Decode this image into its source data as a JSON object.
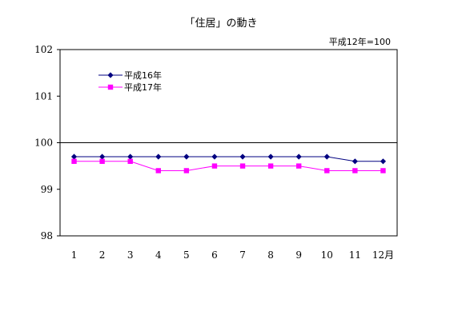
{
  "chart_data": {
    "type": "line",
    "title": "「住居」の動き",
    "note": "平成12年=100",
    "categories": [
      "1",
      "2",
      "3",
      "4",
      "5",
      "6",
      "7",
      "8",
      "9",
      "10",
      "11",
      "12月"
    ],
    "series": [
      {
        "name": "平成16年",
        "color": "#000080",
        "marker": "diamond",
        "values": [
          99.7,
          99.7,
          99.7,
          99.7,
          99.7,
          99.7,
          99.7,
          99.7,
          99.7,
          99.7,
          99.6,
          99.6
        ]
      },
      {
        "name": "平成17年",
        "color": "#ff00ff",
        "marker": "square",
        "values": [
          99.6,
          99.6,
          99.6,
          99.4,
          99.4,
          99.5,
          99.5,
          99.5,
          99.5,
          99.4,
          99.4,
          99.4
        ]
      }
    ],
    "yticks": [
      "98",
      "99",
      "100",
      "101",
      "102"
    ],
    "ylim": [
      98,
      102
    ],
    "reference_line": 100,
    "grid": false,
    "legend_position": "top-left"
  }
}
